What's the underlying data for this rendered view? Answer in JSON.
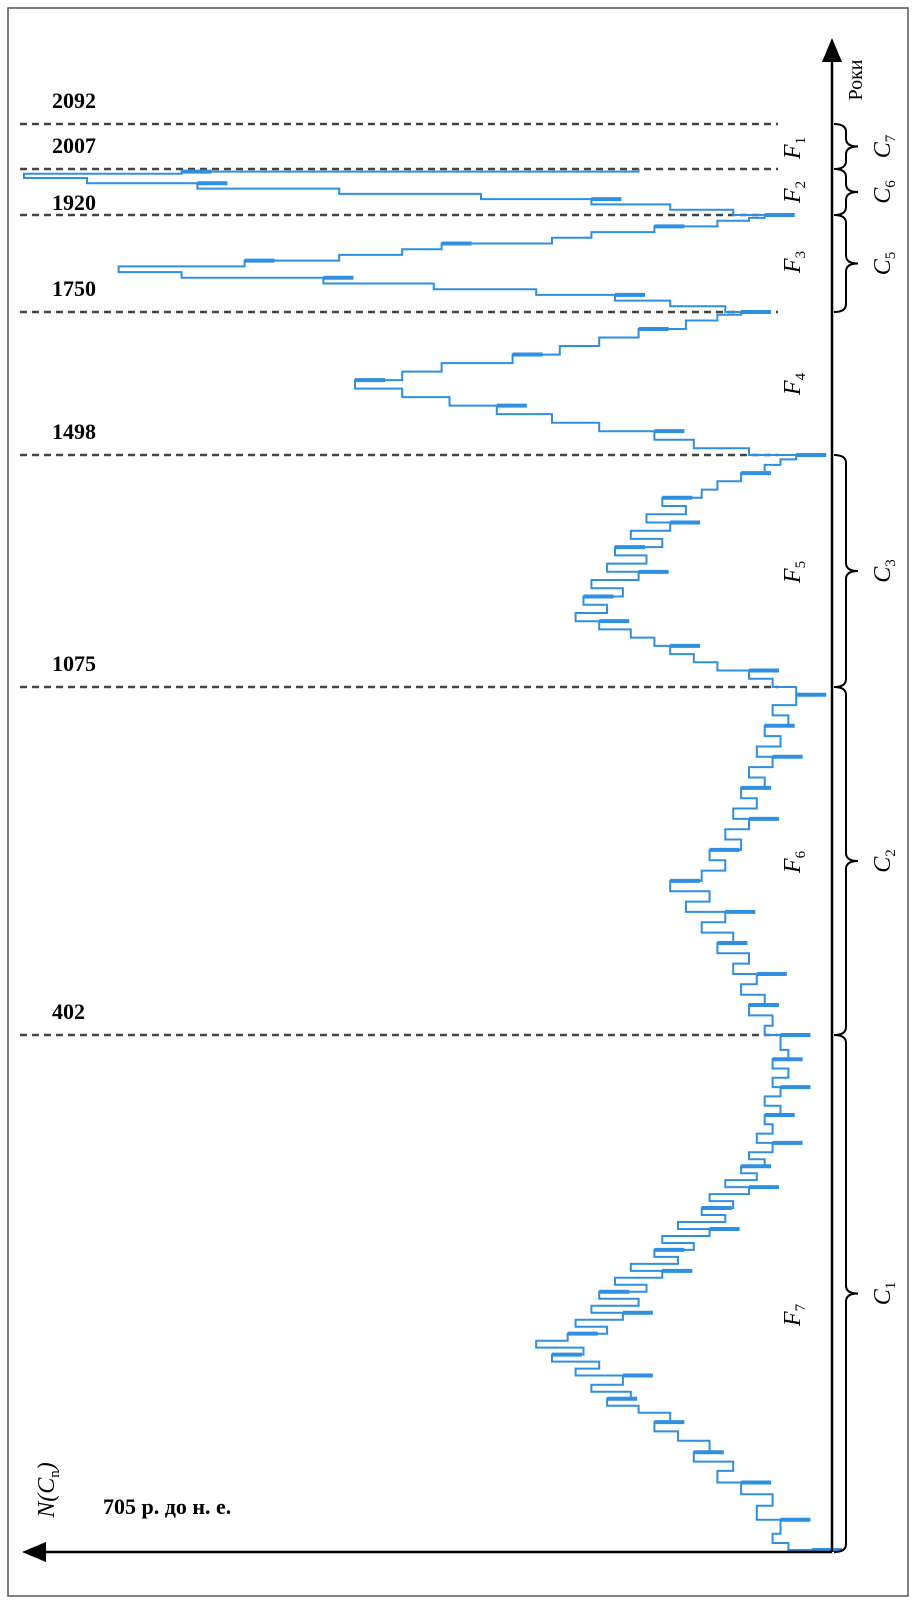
{
  "chart_data": {
    "type": "line",
    "y_axis_label": "Роки",
    "x_axis_label": "N(C_n)",
    "x_axis_label_parts": {
      "main": "N(C",
      "sub": "n",
      "end": ")"
    },
    "start_label": "705 р. до н. е.",
    "year_lines": [
      {
        "label": "2092",
        "year": 2092
      },
      {
        "label": "2007",
        "year": 2007
      },
      {
        "label": "1920",
        "year": 1920
      },
      {
        "label": "1750",
        "year": 1750
      },
      {
        "label": "1498",
        "year": 1498
      },
      {
        "label": "1075",
        "year": 1075
      },
      {
        "label": "402",
        "year": 402
      }
    ],
    "f_segments": [
      {
        "sym": "F",
        "sub": "1"
      },
      {
        "sym": "F",
        "sub": "2"
      },
      {
        "sym": "F",
        "sub": "3"
      },
      {
        "sym": "F",
        "sub": "4"
      },
      {
        "sym": "F",
        "sub": "5"
      },
      {
        "sym": "F",
        "sub": "6"
      },
      {
        "sym": "F",
        "sub": "7"
      }
    ],
    "c_segments": [
      {
        "sym": "C",
        "sub": "7"
      },
      {
        "sym": "C",
        "sub": "6"
      },
      {
        "sym": "C",
        "sub": "5"
      },
      {
        "sym": "C",
        "sub": "3"
      },
      {
        "sym": "C",
        "sub": "2"
      },
      {
        "sym": "C",
        "sub": "1"
      }
    ],
    "series_color": "#2f8fe0",
    "series": [
      {
        "note_units": "year vs relative N(C_n), 0 = no events, 1 = maximum",
        "points": [
          [
            -705,
            0.0
          ],
          [
            -690,
            0.03
          ],
          [
            -670,
            0.05
          ],
          [
            -640,
            0.04
          ],
          [
            -610,
            0.07
          ],
          [
            -585,
            0.05
          ],
          [
            -560,
            0.09
          ],
          [
            -535,
            0.12
          ],
          [
            -515,
            0.1
          ],
          [
            -495,
            0.15
          ],
          [
            -470,
            0.13
          ],
          [
            -450,
            0.17
          ],
          [
            -430,
            0.2
          ],
          [
            -410,
            0.18
          ],
          [
            -395,
            0.22
          ],
          [
            -380,
            0.26
          ],
          [
            -365,
            0.23
          ],
          [
            -350,
            0.28
          ],
          [
            -330,
            0.24
          ],
          [
            -315,
            0.3
          ],
          [
            -300,
            0.27
          ],
          [
            -285,
            0.33
          ],
          [
            -270,
            0.29
          ],
          [
            -255,
            0.35
          ],
          [
            -240,
            0.31
          ],
          [
            -225,
            0.26
          ],
          [
            -210,
            0.3
          ],
          [
            -195,
            0.24
          ],
          [
            -180,
            0.28
          ],
          [
            -165,
            0.22
          ],
          [
            -150,
            0.27
          ],
          [
            -135,
            0.21
          ],
          [
            -120,
            0.25
          ],
          [
            -105,
            0.19
          ],
          [
            -90,
            0.23
          ],
          [
            -75,
            0.17
          ],
          [
            -60,
            0.2
          ],
          [
            -45,
            0.15
          ],
          [
            -30,
            0.19
          ],
          [
            -15,
            0.13
          ],
          [
            0,
            0.17
          ],
          [
            15,
            0.11
          ],
          [
            30,
            0.14
          ],
          [
            45,
            0.1
          ],
          [
            60,
            0.13
          ],
          [
            75,
            0.08
          ],
          [
            90,
            0.11
          ],
          [
            105,
            0.07
          ],
          [
            120,
            0.09
          ],
          [
            135,
            0.06
          ],
          [
            150,
            0.08
          ],
          [
            170,
            0.05
          ],
          [
            190,
            0.07
          ],
          [
            210,
            0.05
          ],
          [
            230,
            0.06
          ],
          [
            250,
            0.04
          ],
          [
            270,
            0.06
          ],
          [
            290,
            0.04
          ],
          [
            310,
            0.05
          ],
          [
            330,
            0.03
          ],
          [
            350,
            0.05
          ],
          [
            370,
            0.03
          ],
          [
            390,
            0.04
          ],
          [
            402,
            0.04
          ],
          [
            420,
            0.06
          ],
          [
            440,
            0.05
          ],
          [
            460,
            0.08
          ],
          [
            480,
            0.06
          ],
          [
            500,
            0.09
          ],
          [
            520,
            0.07
          ],
          [
            540,
            0.1
          ],
          [
            560,
            0.08
          ],
          [
            580,
            0.12
          ],
          [
            600,
            0.1
          ],
          [
            620,
            0.14
          ],
          [
            640,
            0.11
          ],
          [
            660,
            0.16
          ],
          [
            680,
            0.13
          ],
          [
            700,
            0.18
          ],
          [
            720,
            0.14
          ],
          [
            740,
            0.11
          ],
          [
            760,
            0.13
          ],
          [
            780,
            0.09
          ],
          [
            800,
            0.11
          ],
          [
            820,
            0.08
          ],
          [
            840,
            0.1
          ],
          [
            860,
            0.07
          ],
          [
            880,
            0.09
          ],
          [
            900,
            0.06
          ],
          [
            920,
            0.08
          ],
          [
            940,
            0.05
          ],
          [
            960,
            0.07
          ],
          [
            980,
            0.04
          ],
          [
            1000,
            0.06
          ],
          [
            1020,
            0.03
          ],
          [
            1040,
            0.05
          ],
          [
            1060,
            0.02
          ],
          [
            1075,
            0.02
          ],
          [
            1090,
            0.05
          ],
          [
            1105,
            0.08
          ],
          [
            1120,
            0.12
          ],
          [
            1135,
            0.15
          ],
          [
            1150,
            0.18
          ],
          [
            1165,
            0.2
          ],
          [
            1180,
            0.23
          ],
          [
            1195,
            0.27
          ],
          [
            1210,
            0.3
          ],
          [
            1225,
            0.26
          ],
          [
            1240,
            0.29
          ],
          [
            1255,
            0.24
          ],
          [
            1270,
            0.28
          ],
          [
            1285,
            0.22
          ],
          [
            1300,
            0.26
          ],
          [
            1315,
            0.21
          ],
          [
            1330,
            0.25
          ],
          [
            1345,
            0.19
          ],
          [
            1360,
            0.23
          ],
          [
            1375,
            0.18
          ],
          [
            1390,
            0.21
          ],
          [
            1405,
            0.16
          ],
          [
            1420,
            0.19
          ],
          [
            1435,
            0.14
          ],
          [
            1450,
            0.12
          ],
          [
            1465,
            0.09
          ],
          [
            1480,
            0.06
          ],
          [
            1490,
            0.04
          ],
          [
            1498,
            0.02
          ],
          [
            1510,
            0.08
          ],
          [
            1525,
            0.15
          ],
          [
            1540,
            0.2
          ],
          [
            1555,
            0.27
          ],
          [
            1570,
            0.33
          ],
          [
            1585,
            0.4
          ],
          [
            1600,
            0.46
          ],
          [
            1615,
            0.52
          ],
          [
            1630,
            0.58
          ],
          [
            1645,
            0.52
          ],
          [
            1660,
            0.47
          ],
          [
            1675,
            0.38
          ],
          [
            1690,
            0.32
          ],
          [
            1705,
            0.27
          ],
          [
            1720,
            0.22
          ],
          [
            1735,
            0.16
          ],
          [
            1745,
            0.12
          ],
          [
            1750,
            0.09
          ],
          [
            1760,
            0.11
          ],
          [
            1770,
            0.18
          ],
          [
            1780,
            0.25
          ],
          [
            1790,
            0.35
          ],
          [
            1800,
            0.48
          ],
          [
            1810,
            0.62
          ],
          [
            1820,
            0.8
          ],
          [
            1830,
            0.88
          ],
          [
            1840,
            0.72
          ],
          [
            1850,
            0.6
          ],
          [
            1860,
            0.52
          ],
          [
            1870,
            0.47
          ],
          [
            1880,
            0.33
          ],
          [
            1890,
            0.28
          ],
          [
            1900,
            0.2
          ],
          [
            1910,
            0.12
          ],
          [
            1915,
            0.08
          ],
          [
            1920,
            0.06
          ],
          [
            1930,
            0.1
          ],
          [
            1940,
            0.18
          ],
          [
            1950,
            0.28
          ],
          [
            1960,
            0.42
          ],
          [
            1970,
            0.6
          ],
          [
            1980,
            0.78
          ],
          [
            1990,
            0.92
          ],
          [
            1998,
            1.0
          ],
          [
            2002,
            0.8
          ],
          [
            2007,
            0.22
          ]
        ]
      }
    ]
  },
  "colors": {
    "series": "#2f8fe0",
    "axis": "#000000",
    "grid": "#444444"
  }
}
